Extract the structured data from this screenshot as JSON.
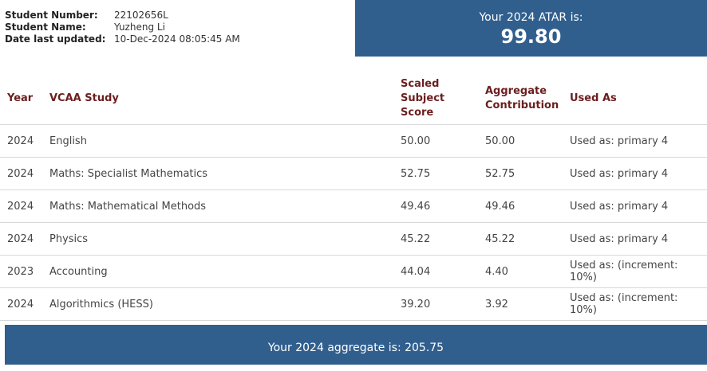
{
  "student": {
    "number_label": "Student Number:",
    "number_value": "22102656L",
    "name_label": "Student Name:",
    "name_value": "Yuzheng Li",
    "updated_label": "Date last updated:",
    "updated_value": "10-Dec-2024 08:05:45 AM"
  },
  "atar": {
    "label": "Your 2024 ATAR is:",
    "value": "99.80"
  },
  "table": {
    "headers": {
      "year": "Year",
      "study": "VCAA Study",
      "score_line1": "Scaled",
      "score_line2": "Subject",
      "score_line3": "Score",
      "agg_line1": "Aggregate",
      "agg_line2": "Contribution",
      "used": "Used As"
    },
    "rows": [
      {
        "year": "2024",
        "study": "English",
        "score": "50.00",
        "agg": "50.00",
        "used": "Used as: primary 4"
      },
      {
        "year": "2024",
        "study": "Maths: Specialist Mathematics",
        "score": "52.75",
        "agg": "52.75",
        "used": "Used as: primary 4"
      },
      {
        "year": "2024",
        "study": "Maths: Mathematical Methods",
        "score": "49.46",
        "agg": "49.46",
        "used": "Used as: primary 4"
      },
      {
        "year": "2024",
        "study": "Physics",
        "score": "45.22",
        "agg": "45.22",
        "used": "Used as: primary 4"
      },
      {
        "year": "2023",
        "study": "Accounting",
        "score": "44.04",
        "agg": "4.40",
        "used": "Used as: (increment: 10%)"
      },
      {
        "year": "2024",
        "study": "Algorithmics (HESS)",
        "score": "39.20",
        "agg": "3.92",
        "used": "Used as: (increment: 10%)"
      }
    ]
  },
  "aggregate": {
    "text": "Your 2024 aggregate is: 205.75"
  },
  "colors": {
    "accent_blue": "#305f8e",
    "header_maroon": "#6b1e1e"
  }
}
